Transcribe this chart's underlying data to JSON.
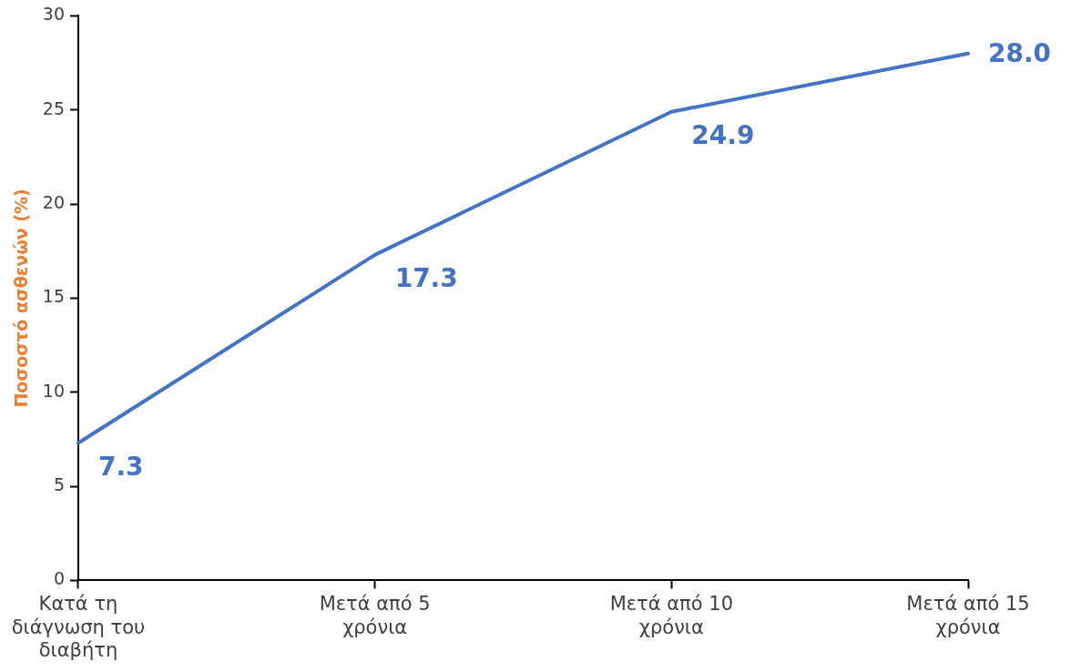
{
  "chart_data": {
    "type": "line",
    "ylabel": "Ποσοστό ασθενών (%)",
    "categories": [
      "Κατά τη διάγνωση του διαβήτη",
      "Μετά από 5 χρόνια",
      "Μετά από 10 χρόνια",
      "Μετά από 15 χρόνια"
    ],
    "series": [
      {
        "color": "#4472c4",
        "values": [
          7.3,
          17.3,
          24.9,
          28.0
        ],
        "value_labels": [
          "7.3",
          "17.3",
          "24.9",
          "28.0"
        ]
      }
    ],
    "ylim": [
      0,
      30
    ],
    "yticks": [
      0,
      5,
      10,
      15,
      20,
      25,
      30
    ],
    "grid": false,
    "legend": false,
    "marker": "none",
    "line_style": "solid"
  }
}
